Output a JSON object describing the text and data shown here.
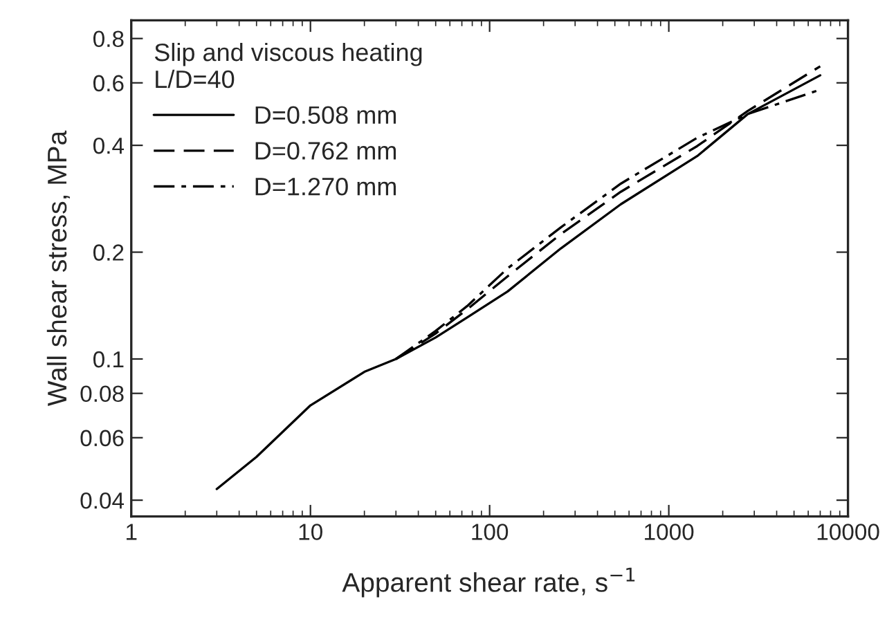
{
  "chart_data": {
    "type": "line",
    "xlabel": "Apparent shear rate, s$^{−1}$",
    "ylabel": "Wall shear stress, MPa",
    "legend_title": "Slip and viscous heating\nL/D=40",
    "log": "xy",
    "legend": "top left",
    "grid": false,
    "xlim": [
      1,
      10000
    ],
    "xticks": [
      1,
      10,
      100,
      1000,
      10000
    ],
    "ylim": [
      0.036,
      0.9
    ],
    "yticks": [
      0.04,
      0.06,
      0.08,
      0.1,
      0.2,
      0.4,
      0.6,
      0.8
    ],
    "series": [
      {
        "name": "D=0.508 mm",
        "color": "#000000",
        "line_style": "solid",
        "x": [
          3,
          5,
          10,
          20,
          30,
          50,
          75,
          126,
          250,
          540,
          1440,
          2760,
          7000
        ],
        "values": [
          0.043,
          0.053,
          0.074,
          0.092,
          0.1,
          0.115,
          0.131,
          0.155,
          0.205,
          0.273,
          0.373,
          0.49,
          0.63
        ]
      },
      {
        "name": "D=0.762 mm",
        "color": "#000000",
        "line_style": "dashed",
        "x": [
          30,
          50,
          75,
          126,
          250,
          540,
          1440,
          2760,
          7000
        ],
        "values": [
          0.1,
          0.118,
          0.138,
          0.171,
          0.225,
          0.296,
          0.398,
          0.5,
          0.668
        ]
      },
      {
        "name": "D=1.270 mm",
        "color": "#000000",
        "line_style": "dashdot",
        "x": [
          30,
          50,
          75,
          126,
          250,
          540,
          1440,
          2760,
          7000
        ],
        "values": [
          0.1,
          0.12,
          0.141,
          0.18,
          0.235,
          0.312,
          0.42,
          0.49,
          0.574
        ]
      }
    ]
  }
}
